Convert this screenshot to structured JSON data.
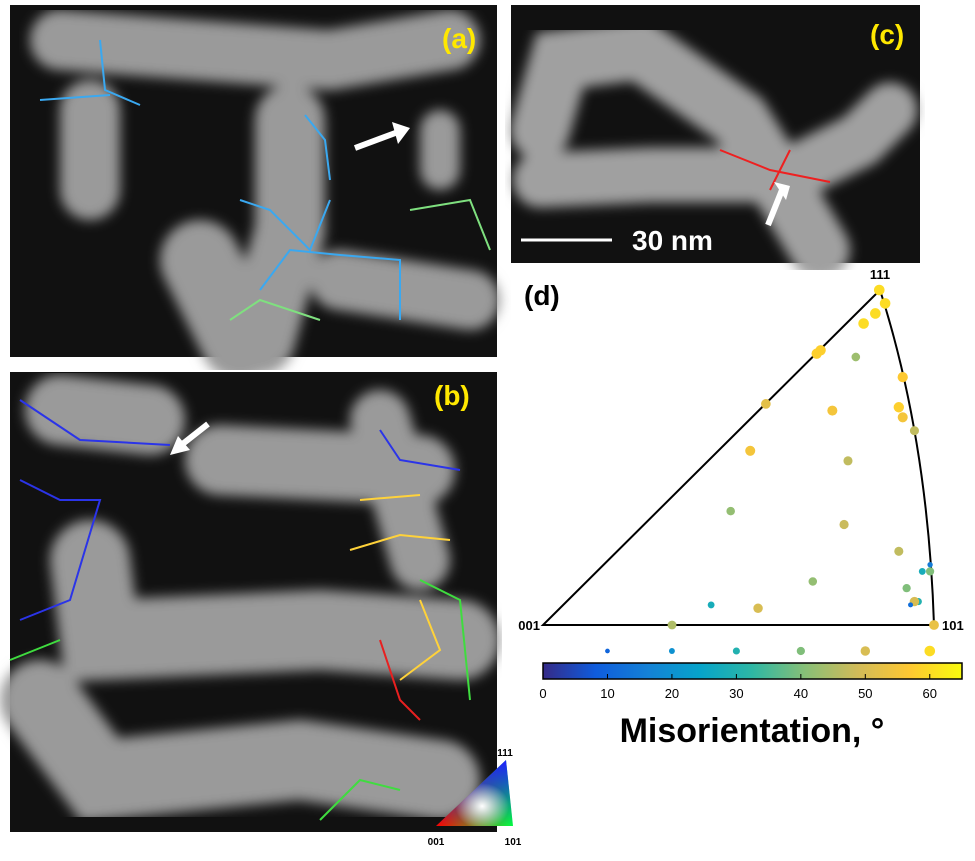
{
  "panels": {
    "a": "(a)",
    "b": "(b)",
    "c": "(c)",
    "d": "(d)"
  },
  "scale_bar": "30 nm",
  "inset_corners": {
    "top": "111",
    "left": "001",
    "right": "101"
  },
  "chart_data": {
    "type": "scatter",
    "corners": {
      "top": "111",
      "left": "001",
      "right": "101"
    },
    "x": [
      0.86,
      0.875,
      0.85,
      0.82,
      0.71,
      0.7,
      0.8,
      0.92,
      0.57,
      0.91,
      0.92,
      0.74,
      0.95,
      0.53,
      0.78,
      0.48,
      0.77,
      0.91,
      0.97,
      0.69,
      0.93,
      0.99,
      0.96,
      0.95,
      0.94,
      0.43,
      0.55,
      0.33,
      1.0,
      0.99
    ],
    "y": [
      1.0,
      0.96,
      0.93,
      0.9,
      0.82,
      0.81,
      0.8,
      0.74,
      0.66,
      0.65,
      0.62,
      0.64,
      0.58,
      0.52,
      0.49,
      0.34,
      0.3,
      0.22,
      0.16,
      0.13,
      0.11,
      0.16,
      0.07,
      0.07,
      0.06,
      0.06,
      0.05,
      0.0,
      0.0,
      0.18
    ],
    "values": [
      60,
      60,
      60,
      60,
      58,
      58,
      43,
      57,
      52,
      58,
      55,
      55,
      47,
      55,
      47,
      42,
      48,
      47,
      28,
      42,
      40,
      40,
      30,
      50,
      12,
      28,
      50,
      45,
      53,
      15
    ],
    "xlim": [
      0,
      1
    ],
    "ylim": [
      0,
      1
    ],
    "colorbar_label": "Misorientation, °",
    "clim": [
      0,
      65
    ],
    "cticks": [
      0,
      10,
      20,
      30,
      40,
      50,
      60
    ],
    "size_legend": [
      10,
      20,
      30,
      40,
      50,
      60
    ],
    "colormap": [
      "#352a87",
      "#0f5cdd",
      "#1481d6",
      "#06a4ca",
      "#2eb7a4",
      "#87bf77",
      "#d1bb59",
      "#fec832",
      "#f9fb0e"
    ]
  }
}
